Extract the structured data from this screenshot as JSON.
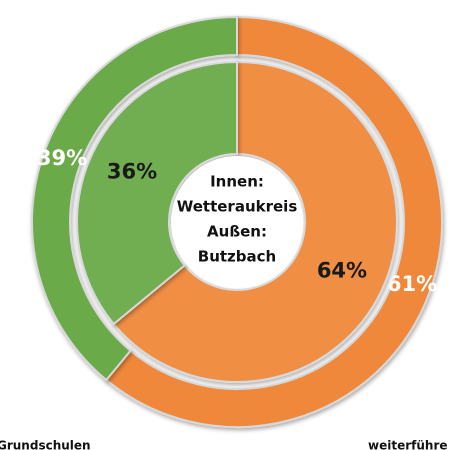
{
  "chart_data": {
    "type": "donut",
    "categories": [
      "weiterführe",
      "Grundschulen"
    ],
    "colors": [
      "#f0883a",
      "#6aaa4a"
    ],
    "series": [
      {
        "values": [
          61,
          39
        ],
        "value_labels": [
          "61%",
          "39%"
        ]
      },
      {
        "values": [
          64,
          36
        ],
        "value_labels": [
          "64%",
          "36%"
        ]
      }
    ],
    "center_text": [
      "Innen:",
      "Wetteraukreis",
      "Außen:",
      "Butzbach"
    ]
  }
}
